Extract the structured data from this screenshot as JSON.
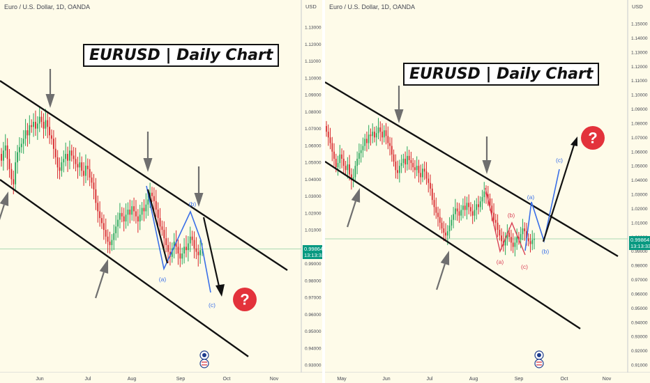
{
  "chart_data": [
    {
      "type": "candlestick",
      "instrument_header": "Euro / U.S. Dollar, 1D, OANDA",
      "title": "EURUSD | Daily Chart",
      "currency_label": "USD",
      "x_tick_labels": [
        "Jun",
        "Jul",
        "Aug",
        "Sep",
        "Oct",
        "Nov"
      ],
      "y_tick_labels": [
        "1.14000",
        "1.13000",
        "1.12000",
        "1.11000",
        "1.10000",
        "1.09000",
        "1.08000",
        "1.07000",
        "1.06000",
        "1.05000",
        "1.04000",
        "1.03000",
        "1.02000",
        "1.01000",
        "1.00000",
        "0.99000",
        "0.98000",
        "0.97000",
        "0.96000",
        "0.95000",
        "0.94000",
        "0.93000"
      ],
      "ylim": [
        0.928,
        1.146
      ],
      "current_price": "0.99864",
      "countdown": "13:13:33",
      "projection_labels": [
        "(a)",
        "(b)",
        "(c)"
      ],
      "annotation": "?",
      "closes": [
        1.051,
        1.057,
        1.06,
        1.052,
        1.046,
        1.04,
        1.037,
        1.05,
        1.056,
        1.059,
        1.061,
        1.064,
        1.069,
        1.066,
        1.072,
        1.071,
        1.074,
        1.07,
        1.073,
        1.077,
        1.074,
        1.07,
        1.075,
        1.071,
        1.066,
        1.064,
        1.058,
        1.053,
        1.047,
        1.045,
        1.05,
        1.052,
        1.055,
        1.051,
        1.057,
        1.054,
        1.052,
        1.049,
        1.047,
        1.05,
        1.045,
        1.042,
        1.048,
        1.046,
        1.041,
        1.038,
        1.034,
        1.026,
        1.021,
        1.017,
        1.014,
        1.01,
        1.006,
        1.003,
        1.001,
        1.004,
        1.008,
        1.012,
        1.016,
        1.02,
        1.018,
        1.015,
        1.019,
        1.022,
        1.019,
        1.024,
        1.021,
        1.018,
        1.015,
        1.019,
        1.023,
        1.021,
        1.025,
        1.028,
        1.032,
        1.03,
        1.027,
        1.022,
        1.017,
        1.012,
        1.01,
        1.005,
        1.001,
        0.997,
        0.994,
        0.999,
        1.003,
        1.0,
        0.996,
        0.993,
        0.996,
        1.0,
        0.998,
        1.002,
        1.006,
        1.004,
        0.999,
        0.997,
        0.995,
        0.998,
        0.9986
      ]
    },
    {
      "type": "candlestick",
      "instrument_header": "Euro / U.S. Dollar, 1D, OANDA",
      "title": "EURUSD | Daily Chart",
      "currency_label": "USD",
      "x_tick_labels": [
        "May",
        "Jun",
        "Jul",
        "Aug",
        "Sep",
        "Oct",
        "Nov"
      ],
      "y_tick_labels": [
        "1.15000",
        "1.14000",
        "1.13000",
        "1.12000",
        "1.11000",
        "1.10000",
        "1.09000",
        "1.08000",
        "1.07000",
        "1.06000",
        "1.05000",
        "1.04000",
        "1.03000",
        "1.02000",
        "1.01000",
        "1.00000",
        "0.99000",
        "0.98000",
        "0.97000",
        "0.96000",
        "0.95000",
        "0.94000",
        "0.93000",
        "0.92000",
        "0.91000"
      ],
      "ylim": [
        0.9045,
        1.1575
      ],
      "current_price": "0.99864",
      "countdown": "13:13:33",
      "red_projection_labels": [
        "(a)",
        "(b)",
        "(c)"
      ],
      "blue_projection_labels": [
        "(a)",
        "(b)",
        "(c)"
      ],
      "annotation": "?",
      "closes": [
        1.074,
        1.07,
        1.066,
        1.06,
        1.055,
        1.049,
        1.052,
        1.058,
        1.055,
        1.05,
        1.047,
        1.051,
        1.044,
        1.04,
        1.042,
        1.05,
        1.055,
        1.059,
        1.061,
        1.064,
        1.069,
        1.066,
        1.072,
        1.071,
        1.074,
        1.07,
        1.073,
        1.077,
        1.074,
        1.07,
        1.075,
        1.071,
        1.066,
        1.064,
        1.058,
        1.053,
        1.047,
        1.045,
        1.05,
        1.052,
        1.055,
        1.051,
        1.057,
        1.054,
        1.052,
        1.049,
        1.047,
        1.05,
        1.045,
        1.042,
        1.048,
        1.046,
        1.041,
        1.038,
        1.034,
        1.026,
        1.021,
        1.017,
        1.014,
        1.01,
        1.006,
        1.003,
        1.001,
        1.004,
        1.008,
        1.012,
        1.016,
        1.02,
        1.018,
        1.015,
        1.019,
        1.022,
        1.019,
        1.024,
        1.021,
        1.018,
        1.015,
        1.019,
        1.023,
        1.021,
        1.025,
        1.028,
        1.032,
        1.03,
        1.027,
        1.022,
        1.017,
        1.012,
        1.01,
        1.005,
        1.001,
        0.997,
        0.994,
        0.999,
        1.003,
        1.0,
        0.996,
        0.993,
        0.996,
        1.0,
        0.998,
        1.002,
        1.006,
        1.004,
        0.999,
        0.997,
        0.995,
        0.998,
        0.9986
      ]
    }
  ],
  "colors": {
    "background": "#fefbe9",
    "bull": "#26a659",
    "bear": "#d7262b",
    "channel": "#111111",
    "wave_blue": "#3a6fe8",
    "wave_red": "#d94055",
    "marker_arrow": "#6f6f6f",
    "price_tag": "#089981",
    "question_badge": "#e3323b"
  }
}
